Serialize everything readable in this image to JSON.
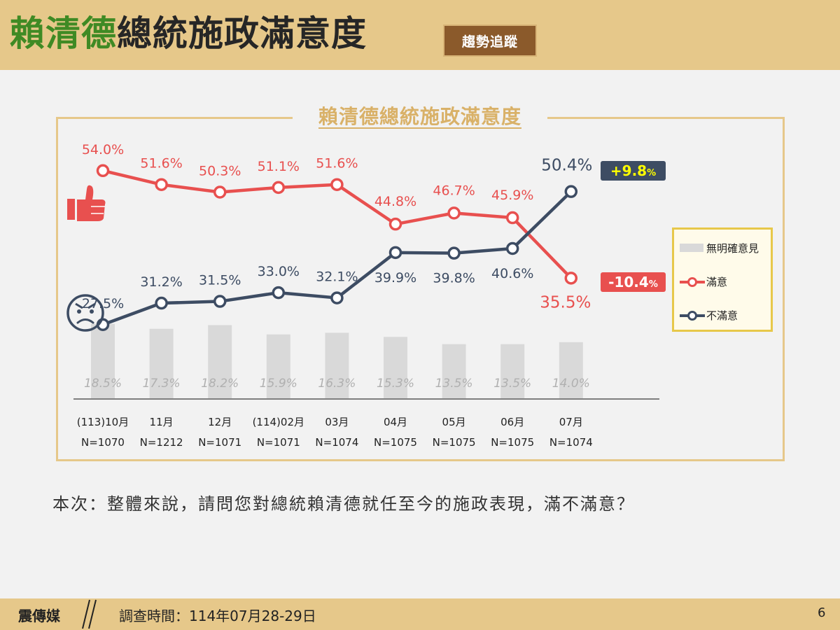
{
  "header": {
    "title_name": "賴清德",
    "title_rest": "總統施政滿意度",
    "badge": "趨勢追蹤"
  },
  "chart_data": {
    "type": "line",
    "title": "賴清德總統施政滿意度",
    "categories": [
      "(113)10月",
      "11月",
      "12月",
      "(114)02月",
      "03月",
      "04月",
      "05月",
      "06月",
      "07月"
    ],
    "sample_sizes": [
      "N=1070",
      "N=1212",
      "N=1071",
      "N=1071",
      "N=1074",
      "N=1075",
      "N=1075",
      "N=1075",
      "N=1074"
    ],
    "series": [
      {
        "name": "滿意",
        "type": "line",
        "color": "#e8504f",
        "values": [
          54.0,
          51.6,
          50.3,
          51.1,
          51.6,
          44.8,
          46.7,
          45.9,
          35.5
        ],
        "labels": [
          "54.0%",
          "51.6%",
          "50.3%",
          "51.1%",
          "51.6%",
          "44.8%",
          "46.7%",
          "45.9%",
          "35.5%"
        ]
      },
      {
        "name": "不滿意",
        "type": "line",
        "color": "#3d4c63",
        "values": [
          27.5,
          31.2,
          31.5,
          33.0,
          32.1,
          39.9,
          39.8,
          40.6,
          50.4
        ],
        "labels": [
          "27.5%",
          "31.2%",
          "31.5%",
          "33.0%",
          "32.1%",
          "39.9%",
          "39.8%",
          "40.6%",
          "50.4%"
        ]
      },
      {
        "name": "無明確意見",
        "type": "bar",
        "color": "#d9d9d9",
        "values": [
          18.5,
          17.3,
          18.2,
          15.9,
          16.3,
          15.3,
          13.5,
          13.5,
          14.0
        ],
        "labels": [
          "18.5%",
          "17.3%",
          "18.2%",
          "15.9%",
          "16.3%",
          "15.3%",
          "13.5%",
          "13.5%",
          "14.0%"
        ]
      }
    ],
    "annotations": [
      {
        "text": "+9.8",
        "unit": "%",
        "bg": "#3d4c63",
        "color": "#ffff00",
        "series": "不滿意"
      },
      {
        "text": "-10.4",
        "unit": "%",
        "bg": "#e8504f",
        "color": "#ffffff",
        "series": "滿意"
      }
    ],
    "legend": {
      "placement": "right",
      "items": [
        "無明確意見",
        "滿意",
        "不滿意"
      ]
    },
    "icons": [
      "thumbs-up-icon",
      "angry-face-icon"
    ]
  },
  "question": "本次：整體來說，請問您對總統賴清德就任至今的施政表現，滿不滿意？",
  "footer": {
    "brand": "震傳媒",
    "date_label": "調查時間：114年07月28-29日",
    "page": "6"
  }
}
